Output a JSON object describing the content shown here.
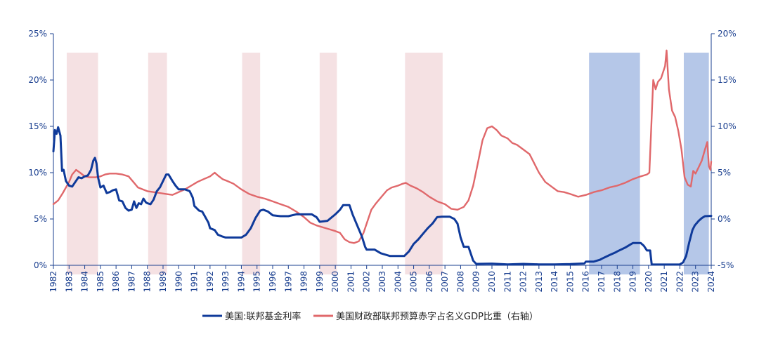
{
  "chart_data": {
    "type": "line",
    "colors": {
      "fed_rate": "#0f3a9a",
      "deficit": "#e0686b",
      "shade_pink": "#f2d7d9",
      "shade_blue": "#a8bde4",
      "axis": "#1a3f8f"
    },
    "x_axis": {
      "min": 1982,
      "max": 2024,
      "tick_labels": [
        "1982",
        "1983",
        "1984",
        "1985",
        "1986",
        "1987",
        "1988",
        "1989",
        "1990",
        "1991",
        "1992",
        "1993",
        "1994",
        "1995",
        "1996",
        "1997",
        "1998",
        "1999",
        "2000",
        "2001",
        "2002",
        "2003",
        "2004",
        "2005",
        "2006",
        "2007",
        "2008",
        "2009",
        "2010",
        "2011",
        "2012",
        "2013",
        "2014",
        "2015",
        "2016",
        "2017",
        "2018",
        "2019",
        "2020",
        "2021",
        "2022",
        "2023",
        "2024"
      ]
    },
    "y_left": {
      "min": 0,
      "max": 25,
      "ticks": [
        0,
        5,
        10,
        15,
        20,
        25
      ],
      "tick_labels": [
        "0%",
        "5%",
        "10%",
        "15%",
        "20%",
        "25%"
      ]
    },
    "y_right": {
      "min": -5,
      "max": 20,
      "ticks": [
        -5,
        0,
        5,
        10,
        15,
        20
      ],
      "tick_labels": [
        "-5%",
        "0%",
        "5%",
        "10%",
        "15%",
        "20%"
      ]
    },
    "shaded_periods": [
      {
        "start": 1982.85,
        "end": 1984.85,
        "color": "pink"
      },
      {
        "start": 1988.05,
        "end": 1989.25,
        "color": "pink"
      },
      {
        "start": 1994.05,
        "end": 1995.2,
        "color": "pink"
      },
      {
        "start": 1999.0,
        "end": 2000.1,
        "color": "pink"
      },
      {
        "start": 2004.45,
        "end": 2006.85,
        "color": "pink"
      },
      {
        "start": 2016.2,
        "end": 2019.45,
        "color": "blue"
      },
      {
        "start": 2022.25,
        "end": 2023.85,
        "color": "blue"
      }
    ],
    "legend_position": "bottom",
    "series": [
      {
        "name": "美国:联邦基金利率",
        "axis": "left",
        "points": [
          [
            1982.0,
            12.3
          ],
          [
            1982.1,
            14.6
          ],
          [
            1982.2,
            14.2
          ],
          [
            1982.3,
            14.9
          ],
          [
            1982.45,
            14.0
          ],
          [
            1982.55,
            10.2
          ],
          [
            1982.65,
            10.3
          ],
          [
            1982.8,
            9.1
          ],
          [
            1983.0,
            8.6
          ],
          [
            1983.2,
            8.5
          ],
          [
            1983.4,
            9.0
          ],
          [
            1983.6,
            9.5
          ],
          [
            1983.8,
            9.4
          ],
          [
            1984.0,
            9.6
          ],
          [
            1984.2,
            9.7
          ],
          [
            1984.4,
            10.3
          ],
          [
            1984.55,
            11.3
          ],
          [
            1984.65,
            11.6
          ],
          [
            1984.75,
            11.0
          ],
          [
            1984.85,
            9.5
          ],
          [
            1985.0,
            8.4
          ],
          [
            1985.2,
            8.6
          ],
          [
            1985.4,
            7.8
          ],
          [
            1985.6,
            7.9
          ],
          [
            1985.8,
            8.1
          ],
          [
            1986.0,
            8.2
          ],
          [
            1986.2,
            7.0
          ],
          [
            1986.4,
            6.9
          ],
          [
            1986.6,
            6.2
          ],
          [
            1986.8,
            5.9
          ],
          [
            1987.0,
            6.0
          ],
          [
            1987.15,
            6.9
          ],
          [
            1987.3,
            6.2
          ],
          [
            1987.45,
            6.7
          ],
          [
            1987.6,
            6.6
          ],
          [
            1987.75,
            7.2
          ],
          [
            1987.9,
            6.8
          ],
          [
            1988.0,
            6.7
          ],
          [
            1988.2,
            6.6
          ],
          [
            1988.4,
            7.1
          ],
          [
            1988.6,
            8.0
          ],
          [
            1988.8,
            8.4
          ],
          [
            1989.0,
            9.1
          ],
          [
            1989.2,
            9.8
          ],
          [
            1989.35,
            9.8
          ],
          [
            1989.6,
            9.1
          ],
          [
            1989.8,
            8.6
          ],
          [
            1990.0,
            8.2
          ],
          [
            1990.4,
            8.2
          ],
          [
            1990.7,
            8.0
          ],
          [
            1990.9,
            7.3
          ],
          [
            1991.0,
            6.4
          ],
          [
            1991.3,
            5.9
          ],
          [
            1991.5,
            5.8
          ],
          [
            1991.7,
            5.2
          ],
          [
            1991.9,
            4.6
          ],
          [
            1992.0,
            4.0
          ],
          [
            1992.3,
            3.8
          ],
          [
            1992.5,
            3.3
          ],
          [
            1992.8,
            3.1
          ],
          [
            1993.0,
            3.0
          ],
          [
            1993.5,
            3.0
          ],
          [
            1994.0,
            3.0
          ],
          [
            1994.3,
            3.3
          ],
          [
            1994.6,
            4.0
          ],
          [
            1994.9,
            5.1
          ],
          [
            1995.2,
            5.9
          ],
          [
            1995.4,
            6.0
          ],
          [
            1995.7,
            5.8
          ],
          [
            1996.0,
            5.4
          ],
          [
            1996.5,
            5.3
          ],
          [
            1997.0,
            5.3
          ],
          [
            1997.5,
            5.5
          ],
          [
            1998.0,
            5.5
          ],
          [
            1998.5,
            5.5
          ],
          [
            1998.8,
            5.2
          ],
          [
            1999.0,
            4.7
          ],
          [
            1999.5,
            4.8
          ],
          [
            2000.0,
            5.5
          ],
          [
            2000.3,
            6.0
          ],
          [
            2000.5,
            6.5
          ],
          [
            2000.9,
            6.5
          ],
          [
            2001.1,
            5.5
          ],
          [
            2001.4,
            4.3
          ],
          [
            2001.7,
            3.1
          ],
          [
            2001.9,
            2.0
          ],
          [
            2002.0,
            1.7
          ],
          [
            2002.5,
            1.7
          ],
          [
            2002.9,
            1.3
          ],
          [
            2003.0,
            1.25
          ],
          [
            2003.5,
            1.0
          ],
          [
            2004.0,
            1.0
          ],
          [
            2004.4,
            1.0
          ],
          [
            2004.7,
            1.5
          ],
          [
            2005.0,
            2.3
          ],
          [
            2005.3,
            2.8
          ],
          [
            2005.6,
            3.4
          ],
          [
            2005.9,
            4.0
          ],
          [
            2006.2,
            4.5
          ],
          [
            2006.5,
            5.2
          ],
          [
            2006.8,
            5.25
          ],
          [
            2007.3,
            5.25
          ],
          [
            2007.6,
            5.0
          ],
          [
            2007.8,
            4.5
          ],
          [
            2008.0,
            3.0
          ],
          [
            2008.2,
            2.0
          ],
          [
            2008.5,
            2.0
          ],
          [
            2008.8,
            0.5
          ],
          [
            2009.0,
            0.15
          ],
          [
            2010.0,
            0.18
          ],
          [
            2011.0,
            0.1
          ],
          [
            2012.0,
            0.15
          ],
          [
            2013.0,
            0.1
          ],
          [
            2014.0,
            0.09
          ],
          [
            2015.0,
            0.13
          ],
          [
            2015.9,
            0.2
          ],
          [
            2016.0,
            0.4
          ],
          [
            2016.5,
            0.4
          ],
          [
            2016.9,
            0.6
          ],
          [
            2017.0,
            0.7
          ],
          [
            2017.5,
            1.1
          ],
          [
            2017.9,
            1.4
          ],
          [
            2018.0,
            1.5
          ],
          [
            2018.5,
            1.9
          ],
          [
            2018.9,
            2.3
          ],
          [
            2019.0,
            2.4
          ],
          [
            2019.5,
            2.4
          ],
          [
            2019.7,
            2.1
          ],
          [
            2019.9,
            1.6
          ],
          [
            2020.1,
            1.6
          ],
          [
            2020.2,
            0.1
          ],
          [
            2021.0,
            0.08
          ],
          [
            2022.0,
            0.1
          ],
          [
            2022.2,
            0.3
          ],
          [
            2022.4,
            1.0
          ],
          [
            2022.6,
            2.5
          ],
          [
            2022.8,
            3.8
          ],
          [
            2022.95,
            4.3
          ],
          [
            2023.2,
            4.8
          ],
          [
            2023.4,
            5.1
          ],
          [
            2023.6,
            5.3
          ],
          [
            2024.0,
            5.33
          ]
        ]
      },
      {
        "name": "美国财政部联邦预算赤字占名义GDP比重（右轴）",
        "axis": "right",
        "points": [
          [
            1982.0,
            1.6
          ],
          [
            1982.3,
            2.0
          ],
          [
            1982.6,
            2.8
          ],
          [
            1983.0,
            4.0
          ],
          [
            1983.2,
            4.8
          ],
          [
            1983.45,
            5.3
          ],
          [
            1983.7,
            5.0
          ],
          [
            1984.0,
            4.6
          ],
          [
            1984.3,
            4.5
          ],
          [
            1984.7,
            4.5
          ],
          [
            1985.0,
            4.6
          ],
          [
            1985.3,
            4.8
          ],
          [
            1985.6,
            4.9
          ],
          [
            1986.0,
            4.9
          ],
          [
            1986.4,
            4.8
          ],
          [
            1986.8,
            4.6
          ],
          [
            1987.1,
            4.0
          ],
          [
            1987.4,
            3.4
          ],
          [
            1987.7,
            3.2
          ],
          [
            1988.0,
            3.0
          ],
          [
            1988.4,
            2.9
          ],
          [
            1988.8,
            2.8
          ],
          [
            1989.2,
            2.7
          ],
          [
            1989.6,
            2.6
          ],
          [
            1990.0,
            2.9
          ],
          [
            1990.4,
            3.2
          ],
          [
            1990.8,
            3.6
          ],
          [
            1991.2,
            4.0
          ],
          [
            1991.6,
            4.3
          ],
          [
            1992.0,
            4.6
          ],
          [
            1992.3,
            5.0
          ],
          [
            1992.5,
            4.7
          ],
          [
            1992.8,
            4.3
          ],
          [
            1993.1,
            4.1
          ],
          [
            1993.5,
            3.8
          ],
          [
            1994.0,
            3.2
          ],
          [
            1994.5,
            2.7
          ],
          [
            1995.0,
            2.4
          ],
          [
            1995.5,
            2.2
          ],
          [
            1996.0,
            1.9
          ],
          [
            1996.5,
            1.6
          ],
          [
            1997.0,
            1.3
          ],
          [
            1997.5,
            0.8
          ],
          [
            1998.0,
            0.2
          ],
          [
            1998.4,
            -0.4
          ],
          [
            1998.8,
            -0.7
          ],
          [
            1999.2,
            -0.9
          ],
          [
            1999.6,
            -1.1
          ],
          [
            2000.0,
            -1.3
          ],
          [
            2000.3,
            -1.5
          ],
          [
            2000.6,
            -2.2
          ],
          [
            2000.9,
            -2.5
          ],
          [
            2001.2,
            -2.6
          ],
          [
            2001.5,
            -2.4
          ],
          [
            2001.8,
            -1.5
          ],
          [
            2002.0,
            -0.5
          ],
          [
            2002.3,
            1.0
          ],
          [
            2002.6,
            1.7
          ],
          [
            2003.0,
            2.5
          ],
          [
            2003.3,
            3.1
          ],
          [
            2003.6,
            3.4
          ],
          [
            2004.0,
            3.6
          ],
          [
            2004.3,
            3.8
          ],
          [
            2004.5,
            3.9
          ],
          [
            2004.8,
            3.6
          ],
          [
            2005.2,
            3.3
          ],
          [
            2005.6,
            2.9
          ],
          [
            2006.0,
            2.4
          ],
          [
            2006.5,
            1.9
          ],
          [
            2007.0,
            1.6
          ],
          [
            2007.4,
            1.1
          ],
          [
            2007.8,
            1.0
          ],
          [
            2008.2,
            1.3
          ],
          [
            2008.5,
            2.0
          ],
          [
            2008.8,
            3.6
          ],
          [
            2009.1,
            6.0
          ],
          [
            2009.4,
            8.5
          ],
          [
            2009.7,
            9.8
          ],
          [
            2010.0,
            10.0
          ],
          [
            2010.3,
            9.6
          ],
          [
            2010.6,
            9.0
          ],
          [
            2011.0,
            8.7
          ],
          [
            2011.3,
            8.2
          ],
          [
            2011.6,
            8.0
          ],
          [
            2012.0,
            7.5
          ],
          [
            2012.4,
            7.0
          ],
          [
            2012.7,
            6.0
          ],
          [
            2013.0,
            5.0
          ],
          [
            2013.4,
            4.0
          ],
          [
            2013.8,
            3.5
          ],
          [
            2014.2,
            3.0
          ],
          [
            2014.6,
            2.9
          ],
          [
            2015.0,
            2.7
          ],
          [
            2015.5,
            2.4
          ],
          [
            2016.0,
            2.6
          ],
          [
            2016.5,
            2.9
          ],
          [
            2017.0,
            3.1
          ],
          [
            2017.5,
            3.4
          ],
          [
            2018.0,
            3.6
          ],
          [
            2018.5,
            3.9
          ],
          [
            2019.0,
            4.3
          ],
          [
            2019.5,
            4.6
          ],
          [
            2019.9,
            4.8
          ],
          [
            2020.05,
            5.0
          ],
          [
            2020.15,
            9.0
          ],
          [
            2020.3,
            15.0
          ],
          [
            2020.45,
            14.0
          ],
          [
            2020.6,
            14.8
          ],
          [
            2020.8,
            15.2
          ],
          [
            2021.05,
            16.5
          ],
          [
            2021.15,
            18.2
          ],
          [
            2021.3,
            14.0
          ],
          [
            2021.5,
            11.7
          ],
          [
            2021.7,
            11.0
          ],
          [
            2021.9,
            9.5
          ],
          [
            2022.1,
            7.5
          ],
          [
            2022.3,
            4.5
          ],
          [
            2022.5,
            3.7
          ],
          [
            2022.7,
            3.5
          ],
          [
            2022.85,
            5.2
          ],
          [
            2023.0,
            4.9
          ],
          [
            2023.2,
            5.6
          ],
          [
            2023.4,
            6.3
          ],
          [
            2023.6,
            7.5
          ],
          [
            2023.75,
            8.3
          ],
          [
            2023.85,
            5.7
          ],
          [
            2023.95,
            5.3
          ],
          [
            2024.0,
            6.2
          ]
        ]
      }
    ]
  }
}
